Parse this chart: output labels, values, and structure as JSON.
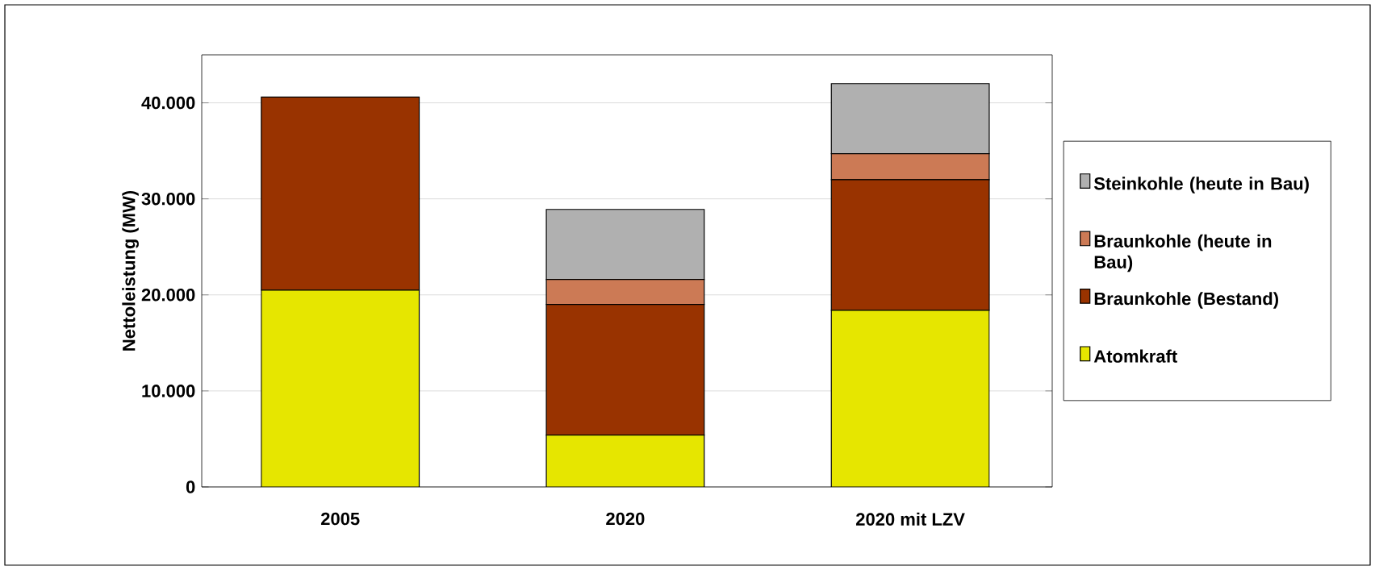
{
  "chart_data": {
    "type": "bar",
    "stacked": true,
    "ylabel": "Nettoleistung (MW)",
    "categories": [
      "2005",
      "2020",
      "2020 mit LZV"
    ],
    "series": [
      {
        "name": "Atomkraft",
        "color": "#e6e600",
        "values": [
          20500,
          5400,
          18400
        ]
      },
      {
        "name": "Braunkohle (Bestand)",
        "color": "#993300",
        "values": [
          20100,
          13600,
          13600
        ]
      },
      {
        "name": "Braunkohle (heute in Bau)",
        "color": "#cc7a55",
        "values": [
          null,
          2600,
          2700
        ]
      },
      {
        "name": "Steinkohle (heute in Bau)",
        "color": "#b0b0b0",
        "values": [
          null,
          7300,
          7300
        ]
      }
    ],
    "ylim": [
      0,
      45000
    ],
    "yticks": [
      0,
      {
        "value": 10000,
        "label": "10.000"
      },
      {
        "value": 20000,
        "label": "20.000"
      },
      {
        "value": 30000,
        "label": "30.000"
      },
      {
        "value": 40000,
        "label": "40.000"
      }
    ],
    "grid": "y",
    "legend": "right"
  }
}
